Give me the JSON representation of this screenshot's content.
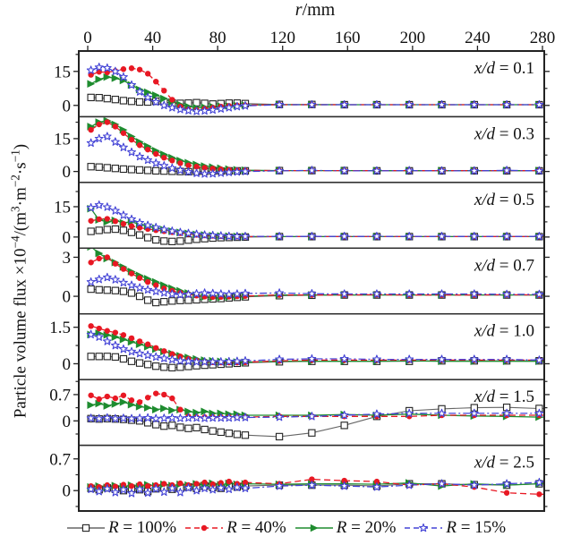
{
  "chart_data": {
    "type": "line",
    "x_title": {
      "var": "r",
      "rest": "/mm"
    },
    "x_ticks": [
      0,
      40,
      80,
      120,
      160,
      200,
      240,
      280
    ],
    "x_range": [
      -5.5,
      284
    ],
    "y_title_plain": "Particle volume flux ×10−4/(m3·m−2·s−1)",
    "y_title_segments": [
      [
        "t",
        "Particle volume flux ×10"
      ],
      [
        "sup",
        "−4"
      ],
      [
        "t",
        "/(m"
      ],
      [
        "sup",
        "3"
      ],
      [
        "t",
        "·m"
      ],
      [
        "sup",
        "−2"
      ],
      [
        "t",
        "·s"
      ],
      [
        "sup",
        "−1"
      ],
      [
        "t",
        ")"
      ]
    ],
    "legend_position": "bottom",
    "grid": false,
    "series_defs": [
      {
        "id": "R100",
        "label_var": "R",
        "label_rest": " = 100%",
        "color": "#666666",
        "marker_color": "#222222",
        "marker": "open-square",
        "line": "solid"
      },
      {
        "id": "R40",
        "label_var": "R",
        "label_rest": " = 40%",
        "color": "#e81823",
        "marker_color": "#e81823",
        "marker": "filled-circle",
        "line": "dashed"
      },
      {
        "id": "R20",
        "label_var": "R",
        "label_rest": " = 20%",
        "color": "#1e8c2f",
        "marker_color": "#1e8c2f",
        "marker": "filled-right-triangle",
        "line": "solid"
      },
      {
        "id": "R15",
        "label_var": "R",
        "label_rest": " = 15%",
        "color": "#4444d6",
        "marker_color": "#4444d6",
        "marker": "open-star",
        "line": "dash-dot"
      }
    ],
    "r_grid": [
      2,
      7,
      12,
      17,
      22,
      27,
      32,
      37,
      42,
      47,
      52,
      57,
      62,
      67,
      72,
      77,
      82,
      87,
      92,
      97,
      118,
      138,
      158,
      178,
      198,
      218,
      238,
      258,
      278
    ],
    "panels": [
      {
        "label_var": "x/d",
        "label_rest": " = 0.1",
        "y_range": [
          -5,
          24
        ],
        "y_ticks": [
          [
            15,
            "15"
          ],
          [
            0,
            "0"
          ]
        ],
        "y_minor": [
          7.5,
          22.5
        ],
        "values": {
          "R100": [
            3.5,
            3.4,
            3.0,
            2.6,
            2.1,
            1.8,
            1.5,
            1.5,
            1.8,
            1.5,
            1.1,
            0.9,
            1.0,
            1.2,
            0.9,
            0.6,
            0.8,
            1.0,
            1.0,
            0.8,
            0.4,
            0.4,
            0.3,
            0.3,
            0.3,
            0.3,
            0.3,
            0.3,
            0.3
          ],
          "R40": [
            13.5,
            14.8,
            14.6,
            15.2,
            16.0,
            16.4,
            15.8,
            14.0,
            10.5,
            6.5,
            2.5,
            -0.5,
            -1.8,
            -2.0,
            -1.5,
            -1.0,
            -0.5,
            -0.2,
            0.0,
            0.1,
            0.3,
            0.3,
            0.3,
            0.3,
            0.3,
            0.3,
            0.3,
            0.3,
            0.3
          ],
          "R20": [
            9.5,
            11.5,
            12.5,
            12.0,
            11.0,
            9.0,
            7.0,
            5.8,
            4.5,
            3.0,
            1.5,
            0.4,
            -0.5,
            -1.0,
            -0.8,
            -0.5,
            -0.3,
            -0.2,
            0.0,
            0.1,
            0.3,
            0.3,
            0.3,
            0.3,
            0.3,
            0.3,
            0.3,
            0.3,
            0.3
          ],
          "R15": [
            15.5,
            16.8,
            16.5,
            15.0,
            12.5,
            9.0,
            6.0,
            3.5,
            1.5,
            0.0,
            -1.0,
            -1.8,
            -2.3,
            -2.6,
            -2.4,
            -2.0,
            -1.5,
            -1.0,
            -0.5,
            -0.2,
            0.3,
            0.3,
            0.3,
            0.3,
            0.3,
            0.3,
            0.3,
            0.3,
            0.3
          ]
        }
      },
      {
        "label_var": "x/d",
        "label_rest": " = 0.3",
        "y_range": [
          -5,
          25
        ],
        "y_ticks": [
          [
            15,
            "15"
          ],
          [
            0,
            "0"
          ]
        ],
        "y_minor": [
          7.5,
          22.5
        ],
        "values": {
          "R100": [
            2.2,
            2.0,
            1.7,
            1.4,
            1.1,
            0.9,
            0.7,
            0.5,
            0.3,
            0.2,
            0.1,
            0.0,
            -0.1,
            0.0,
            0.1,
            0.2,
            0.2,
            0.3,
            0.3,
            0.3,
            0.4,
            0.4,
            0.4,
            0.3,
            0.3,
            0.3,
            0.3,
            0.3,
            0.3
          ],
          "R40": [
            19.0,
            21.5,
            22.5,
            20.5,
            17.5,
            14.5,
            12.0,
            10.0,
            8.0,
            6.3,
            5.0,
            3.8,
            2.8,
            2.2,
            1.7,
            1.3,
            1.0,
            0.8,
            0.6,
            0.5,
            0.4,
            0.4,
            0.4,
            0.4,
            0.4,
            0.4,
            0.4,
            0.4,
            0.4
          ],
          "R20": [
            20.5,
            22.5,
            23.2,
            21.5,
            19.0,
            16.0,
            13.5,
            11.5,
            9.5,
            7.8,
            6.3,
            5.0,
            4.0,
            3.2,
            2.5,
            2.0,
            1.5,
            1.1,
            0.8,
            0.6,
            0.4,
            0.4,
            0.4,
            0.4,
            0.4,
            0.4,
            0.4,
            0.4,
            0.4
          ],
          "R15": [
            13.0,
            15.0,
            16.0,
            13.5,
            11.0,
            8.8,
            6.8,
            5.2,
            3.8,
            2.6,
            1.5,
            0.6,
            -0.2,
            -0.8,
            -1.1,
            -1.0,
            -0.7,
            -0.4,
            -0.2,
            0.0,
            0.3,
            0.5,
            0.3,
            0.3,
            0.4,
            0.3,
            0.3,
            0.5,
            0.3
          ]
        }
      },
      {
        "label_var": "x/d",
        "label_rest": " = 0.5",
        "y_range": [
          -5.5,
          27
        ],
        "y_ticks": [
          [
            15,
            "15"
          ],
          [
            0,
            "0"
          ]
        ],
        "y_minor": [
          7.5,
          22.5
        ],
        "values": {
          "R100": [
            2.8,
            3.3,
            3.7,
            3.9,
            3.3,
            2.3,
            1.0,
            -0.3,
            -1.4,
            -2.0,
            -2.2,
            -2.0,
            -1.5,
            -1.1,
            -0.8,
            -0.5,
            -0.3,
            -0.2,
            -0.1,
            0.0,
            0.2,
            0.2,
            0.2,
            0.2,
            0.2,
            0.2,
            0.2,
            0.2,
            0.2
          ],
          "R40": [
            8.0,
            8.8,
            9.0,
            7.8,
            6.5,
            5.4,
            4.6,
            4.0,
            3.4,
            2.9,
            2.4,
            1.9,
            1.5,
            1.1,
            0.8,
            0.6,
            0.4,
            0.3,
            0.2,
            0.2,
            0.2,
            0.2,
            0.2,
            0.2,
            0.2,
            0.2,
            0.2,
            0.2,
            0.2
          ],
          "R20": [
            14.0,
            8.5,
            7.5,
            8.2,
            7.0,
            7.6,
            6.2,
            5.2,
            4.4,
            3.6,
            2.9,
            2.3,
            1.8,
            1.3,
            1.0,
            0.7,
            0.5,
            0.4,
            0.3,
            0.2,
            0.2,
            0.2,
            0.2,
            0.2,
            0.2,
            0.2,
            0.2,
            0.2,
            0.2
          ],
          "R15": [
            14.5,
            15.8,
            14.8,
            13.0,
            10.8,
            8.8,
            7.0,
            5.8,
            4.7,
            3.7,
            2.9,
            2.3,
            1.8,
            1.4,
            1.0,
            0.8,
            0.6,
            0.4,
            0.3,
            0.3,
            0.3,
            0.3,
            0.3,
            0.3,
            0.3,
            0.3,
            0.3,
            0.3,
            0.3
          ]
        }
      },
      {
        "label_var": "x/d",
        "label_rest": " = 0.7",
        "y_range": [
          -1.35,
          3.7
        ],
        "y_ticks": [
          [
            3,
            "3"
          ],
          [
            0,
            "0"
          ]
        ],
        "y_minor": [
          1.5
        ],
        "values": {
          "R100": [
            0.55,
            0.5,
            0.47,
            0.44,
            0.38,
            0.25,
            0.0,
            -0.3,
            -0.48,
            -0.42,
            -0.36,
            -0.32,
            -0.3,
            -0.27,
            -0.23,
            -0.2,
            -0.17,
            -0.12,
            -0.08,
            -0.04,
            0.05,
            0.08,
            0.1,
            0.1,
            0.1,
            0.1,
            0.1,
            0.1,
            0.1
          ],
          "R40": [
            2.6,
            2.9,
            3.0,
            2.5,
            2.1,
            1.75,
            1.4,
            1.1,
            0.85,
            0.6,
            0.42,
            0.27,
            0.15,
            0.05,
            -0.02,
            -0.05,
            -0.05,
            -0.03,
            0.0,
            0.02,
            0.1,
            0.1,
            0.1,
            0.12,
            0.1,
            0.1,
            0.1,
            0.12,
            0.1
          ],
          "R20": [
            3.8,
            3.3,
            2.9,
            2.6,
            2.25,
            1.9,
            1.6,
            1.35,
            1.1,
            0.85,
            0.62,
            0.42,
            0.25,
            0.1,
            -0.05,
            -0.12,
            -0.1,
            -0.06,
            -0.02,
            0.0,
            0.1,
            0.1,
            0.1,
            0.1,
            0.1,
            0.1,
            0.1,
            0.1,
            0.1
          ],
          "R15": [
            1.1,
            1.3,
            1.45,
            1.28,
            1.05,
            0.85,
            0.65,
            0.5,
            0.38,
            0.27,
            0.18,
            0.12,
            0.15,
            0.2,
            0.25,
            0.22,
            0.18,
            0.15,
            0.18,
            0.22,
            0.25,
            0.2,
            0.18,
            0.18,
            0.18,
            0.18,
            0.18,
            0.15,
            0.15
          ]
        }
      },
      {
        "label_var": "x/d",
        "label_rest": " = 1.0",
        "y_range": [
          -0.65,
          2.05
        ],
        "y_ticks": [
          [
            1.5,
            "1.5"
          ],
          [
            0,
            "0"
          ]
        ],
        "y_minor": [
          0.75
        ],
        "values": {
          "R100": [
            0.3,
            0.3,
            0.3,
            0.28,
            0.2,
            0.1,
            0.03,
            -0.03,
            -0.1,
            -0.14,
            -0.16,
            -0.14,
            -0.11,
            -0.08,
            -0.06,
            -0.04,
            -0.02,
            0.0,
            0.02,
            0.04,
            0.08,
            0.1,
            0.1,
            0.1,
            0.1,
            0.12,
            0.12,
            0.12,
            0.12
          ],
          "R40": [
            1.55,
            1.45,
            1.35,
            1.28,
            1.18,
            1.05,
            0.92,
            0.8,
            0.65,
            0.52,
            0.4,
            0.3,
            0.2,
            0.13,
            0.08,
            0.06,
            0.05,
            0.05,
            0.05,
            0.06,
            0.12,
            0.15,
            0.15,
            0.15,
            0.15,
            0.15,
            0.15,
            0.15,
            0.15
          ],
          "R20": [
            1.2,
            1.25,
            1.18,
            1.1,
            1.0,
            0.9,
            0.8,
            0.7,
            0.6,
            0.5,
            0.42,
            0.33,
            0.26,
            0.2,
            0.15,
            0.12,
            0.1,
            0.08,
            0.07,
            0.06,
            0.1,
            0.1,
            0.1,
            0.1,
            0.12,
            0.1,
            0.1,
            0.1,
            0.1
          ],
          "R15": [
            1.2,
            1.1,
            0.92,
            0.75,
            0.6,
            0.5,
            0.42,
            0.35,
            0.28,
            0.22,
            0.17,
            0.12,
            0.1,
            0.08,
            0.08,
            0.08,
            0.08,
            0.09,
            0.1,
            0.12,
            0.18,
            0.2,
            0.2,
            0.18,
            0.18,
            0.18,
            0.18,
            0.18,
            0.15
          ]
        }
      },
      {
        "label_var": "x/d",
        "label_rest": " = 1.5",
        "y_range": [
          -0.65,
          1.1
        ],
        "y_ticks": [
          [
            0.7,
            "0.7"
          ],
          [
            0,
            "0"
          ]
        ],
        "y_minor": [
          -0.35,
          0.35,
          1.05
        ],
        "values": {
          "R100": [
            0.06,
            0.05,
            0.06,
            0.05,
            0.04,
            0.02,
            0.0,
            -0.05,
            -0.1,
            -0.14,
            -0.12,
            -0.17,
            -0.2,
            -0.18,
            -0.23,
            -0.27,
            -0.3,
            -0.33,
            -0.36,
            -0.38,
            -0.42,
            -0.32,
            -0.12,
            0.12,
            0.27,
            0.32,
            0.35,
            0.36,
            0.33
          ],
          "R40": [
            0.68,
            0.58,
            0.65,
            0.6,
            0.68,
            0.55,
            0.5,
            0.62,
            0.73,
            0.7,
            0.6,
            0.3,
            0.12,
            0.1,
            0.1,
            0.1,
            0.1,
            0.1,
            0.1,
            0.1,
            0.12,
            0.12,
            0.12,
            0.12,
            0.12,
            0.15,
            0.15,
            0.15,
            0.15
          ],
          "R20": [
            0.42,
            0.46,
            0.4,
            0.45,
            0.5,
            0.43,
            0.38,
            0.35,
            0.3,
            0.33,
            0.28,
            0.3,
            0.25,
            0.22,
            0.25,
            0.2,
            0.2,
            0.18,
            0.18,
            0.15,
            0.15,
            0.15,
            0.17,
            0.15,
            0.18,
            0.15,
            0.13,
            0.12,
            0.1
          ],
          "R15": [
            0.07,
            0.06,
            0.08,
            0.06,
            0.07,
            0.06,
            0.07,
            0.08,
            0.06,
            0.07,
            0.08,
            0.07,
            0.08,
            0.08,
            0.07,
            0.08,
            0.08,
            0.08,
            0.09,
            0.09,
            0.1,
            0.12,
            0.15,
            0.18,
            0.2,
            0.2,
            0.2,
            0.2,
            0.2
          ]
        }
      },
      {
        "label_var": "x/d",
        "label_rest": " = 2.5",
        "y_range": [
          -0.45,
          1.0
        ],
        "y_ticks": [
          [
            0.7,
            "0.7"
          ],
          [
            0,
            "0"
          ]
        ],
        "y_minor": [
          -0.35,
          0.35
        ],
        "values": {
          "R100": [
            0.05,
            0.02,
            0.06,
            0.03,
            0.0,
            0.05,
            0.02,
            -0.02,
            0.04,
            0.06,
            0.03,
            0.05,
            0.08,
            0.05,
            0.1,
            0.07,
            0.05,
            0.1,
            0.08,
            0.1,
            0.12,
            0.12,
            0.12,
            0.1,
            0.15,
            0.15,
            0.13,
            0.12,
            0.15
          ],
          "R40": [
            0.1,
            0.08,
            0.12,
            0.09,
            0.13,
            0.1,
            0.14,
            0.1,
            0.12,
            0.15,
            0.12,
            0.16,
            0.12,
            0.15,
            0.18,
            0.14,
            0.17,
            0.2,
            0.15,
            0.18,
            0.15,
            0.25,
            0.22,
            0.2,
            0.12,
            0.15,
            0.08,
            -0.05,
            -0.08
          ],
          "R20": [
            0.08,
            0.1,
            0.07,
            0.11,
            0.09,
            0.12,
            0.09,
            0.13,
            0.1,
            0.14,
            0.11,
            0.14,
            0.12,
            0.15,
            0.12,
            0.16,
            0.13,
            0.16,
            0.14,
            0.15,
            0.14,
            0.15,
            0.15,
            0.14,
            0.17,
            0.1,
            0.15,
            0.12,
            0.15
          ],
          "R15": [
            0.03,
            -0.02,
            0.04,
            -0.04,
            0.02,
            -0.06,
            0.03,
            -0.05,
            0.04,
            -0.03,
            0.05,
            -0.04,
            0.06,
            0.0,
            0.05,
            0.02,
            0.06,
            0.03,
            0.07,
            0.05,
            0.1,
            0.12,
            0.1,
            0.08,
            0.12,
            0.15,
            0.12,
            0.15,
            0.18
          ]
        }
      }
    ]
  }
}
